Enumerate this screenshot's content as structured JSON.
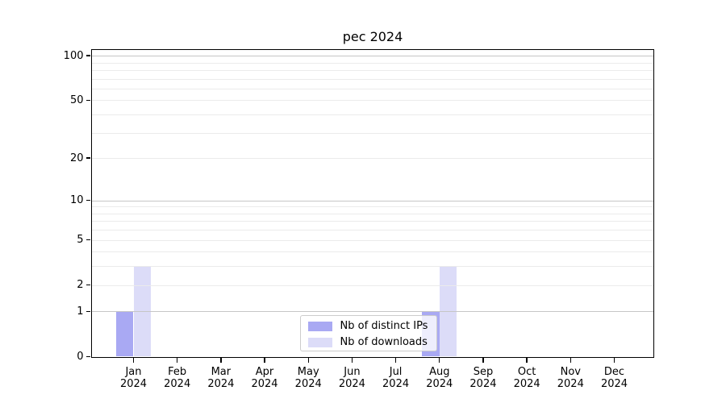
{
  "chart_data": {
    "type": "bar",
    "title": "pec 2024",
    "months": [
      "Jan",
      "Feb",
      "Mar",
      "Apr",
      "May",
      "Jun",
      "Jul",
      "Aug",
      "Sep",
      "Oct",
      "Nov",
      "Dec"
    ],
    "year": "2024",
    "series": [
      {
        "name": "Nb of distinct IPs",
        "color": "#a9a9f3",
        "values": [
          1,
          0,
          0,
          0,
          0,
          0,
          0,
          1,
          0,
          0,
          0,
          0
        ]
      },
      {
        "name": "Nb of downloads",
        "color": "#dcdcf8",
        "values": [
          3,
          0,
          0,
          0,
          0,
          0,
          0,
          3,
          0,
          0,
          0,
          0
        ]
      }
    ],
    "yscale": "log10(1+x)",
    "ylim": [
      0,
      110
    ],
    "yticks": [
      0,
      1,
      2,
      5,
      10,
      20,
      50,
      100
    ],
    "y_major_grid": [
      1,
      10,
      100
    ],
    "y_minor_grid": [
      2,
      3,
      4,
      5,
      6,
      7,
      8,
      9,
      20,
      30,
      40,
      50,
      60,
      70,
      80,
      90
    ],
    "grid": true,
    "legend_position": "lower center"
  },
  "colors": {
    "major_grid": "#c6c6c6",
    "minor_grid": "#ebebeb",
    "spine": "#000000",
    "background": "#ffffff"
  }
}
